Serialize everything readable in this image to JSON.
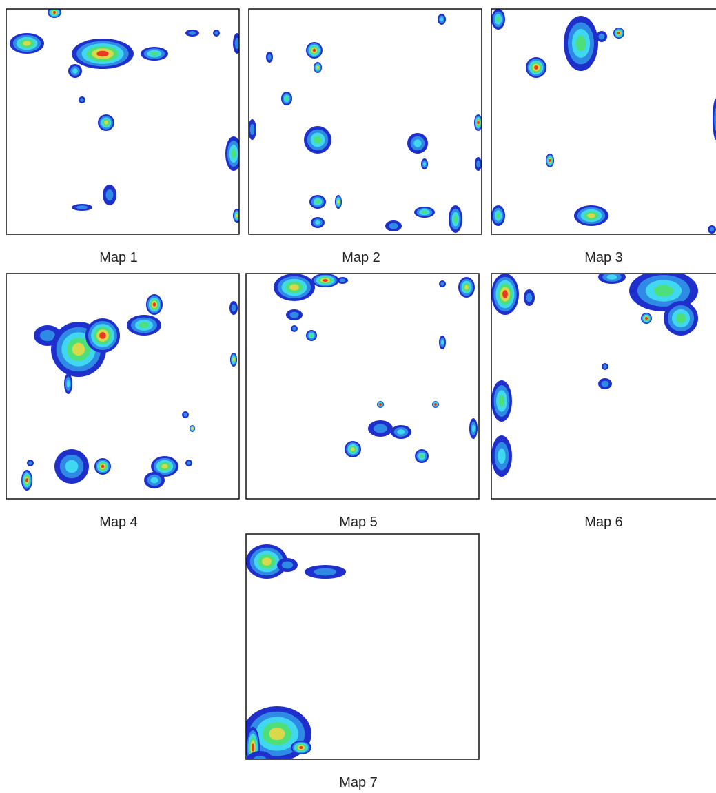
{
  "maps": [
    {
      "label": "Map 1"
    },
    {
      "label": "Map 2"
    },
    {
      "label": "Map 3"
    },
    {
      "label": "Map 4"
    },
    {
      "label": "Map 5"
    },
    {
      "label": "Map 6"
    },
    {
      "label": "Map 7"
    }
  ]
}
